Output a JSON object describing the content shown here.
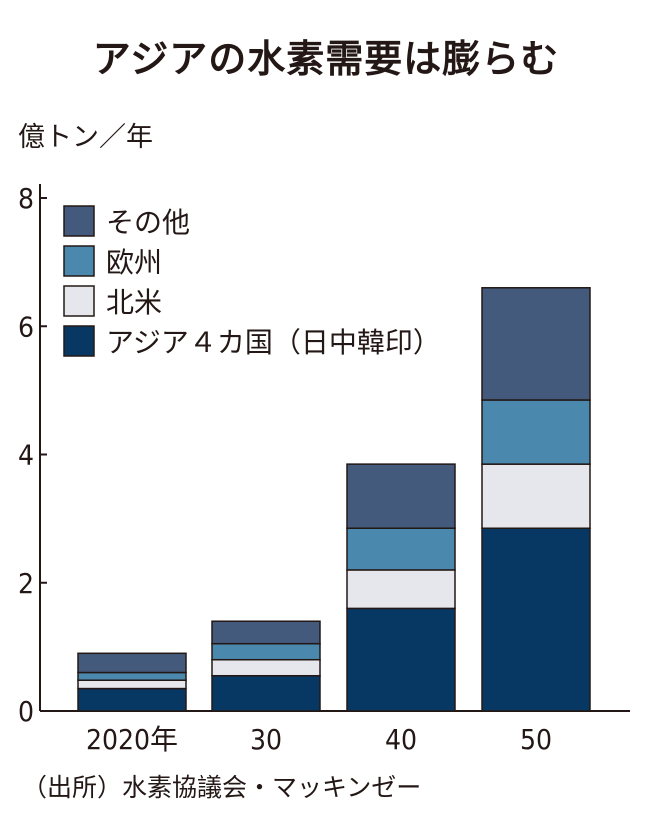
{
  "title": "アジアの水素需要は膨らむ",
  "unit_label": "億トン／年",
  "source": "（出所）水素協議会・マッキンゼー",
  "chart_data": {
    "type": "bar",
    "stacked": true,
    "categories": [
      "2020年",
      "30",
      "40",
      "50"
    ],
    "series": [
      {
        "name": "アジア４カ国（日中韓印）",
        "color": "#073763",
        "values": [
          0.35,
          0.55,
          1.6,
          2.85
        ]
      },
      {
        "name": "北米",
        "color": "#e6e7ec",
        "values": [
          0.13,
          0.25,
          0.6,
          1.0
        ]
      },
      {
        "name": "欧州",
        "color": "#4a89ad",
        "values": [
          0.12,
          0.25,
          0.65,
          1.0
        ]
      },
      {
        "name": "その他",
        "color": "#445a7c",
        "values": [
          0.3,
          0.35,
          1.0,
          1.75
        ]
      }
    ],
    "yticks": [
      "0",
      "2",
      "4",
      "6",
      "8"
    ],
    "ylim": [
      0,
      8
    ],
    "legend_position": "top-left"
  }
}
